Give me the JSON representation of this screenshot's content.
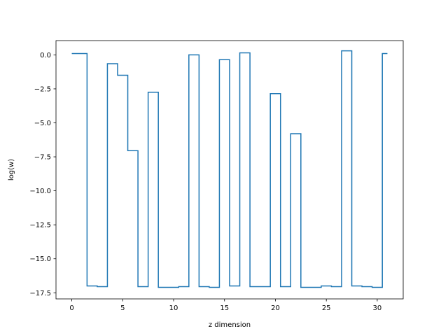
{
  "chart_data": {
    "type": "line",
    "drawstyle": "steps-mid",
    "title": "",
    "xlabel": "z dimension",
    "ylabel": "log(w)",
    "xlim": [
      -1.55,
      32.55
    ],
    "ylim": [
      -17.95,
      1.05
    ],
    "grid": false,
    "legend": "none",
    "line_color": "#1f77b4",
    "x_ticks": [
      0,
      5,
      10,
      15,
      20,
      25,
      30
    ],
    "x_tick_labels": [
      "0",
      "5",
      "10",
      "15",
      "20",
      "25",
      "30"
    ],
    "y_ticks": [
      0.0,
      -2.5,
      -5.0,
      -7.5,
      -10.0,
      -12.5,
      -15.0,
      -17.5
    ],
    "y_tick_labels": [
      "0.0",
      "−2.5",
      "−5.0",
      "−7.5",
      "−10.0",
      "−12.5",
      "−15.0",
      "−17.5"
    ],
    "series": [
      {
        "x": [
          0,
          1,
          2,
          3,
          4,
          5,
          6,
          7,
          8,
          9,
          10,
          11,
          12,
          13,
          14,
          15,
          16,
          17,
          18,
          19,
          20,
          21,
          22,
          23,
          24,
          25,
          26,
          27,
          28,
          29,
          30,
          31
        ],
        "y": [
          0.1,
          0.1,
          -17.0,
          -17.05,
          -0.65,
          -1.5,
          -7.05,
          -17.05,
          -2.75,
          -17.1,
          -17.1,
          -17.05,
          0.0,
          -17.05,
          -17.1,
          -0.35,
          -17.0,
          0.15,
          -17.05,
          -17.05,
          -2.85,
          -17.05,
          -5.8,
          -17.1,
          -17.1,
          -17.0,
          -17.05,
          0.3,
          -17.0,
          -17.05,
          -17.1,
          0.1
        ]
      }
    ]
  }
}
